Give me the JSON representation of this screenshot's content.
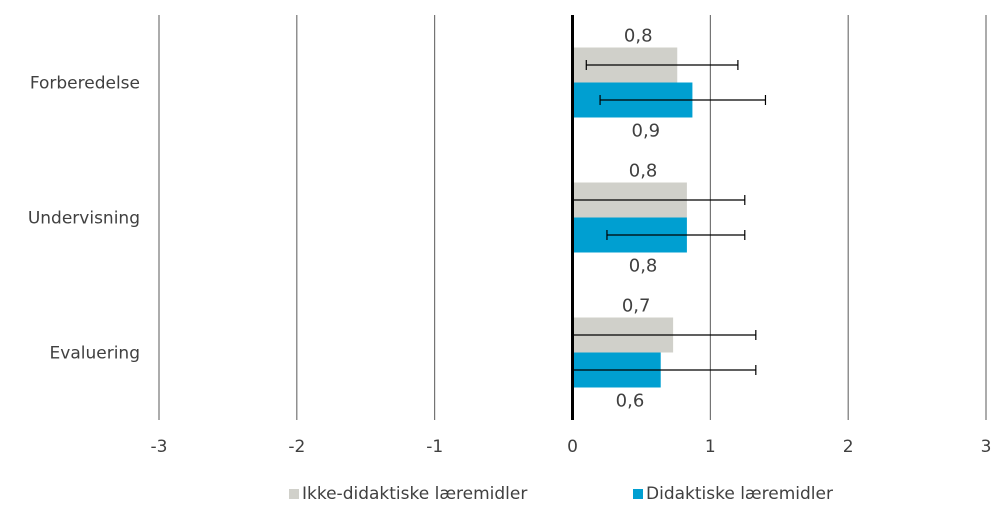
{
  "chart_data": {
    "type": "bar",
    "orientation": "horizontal",
    "title": "",
    "xlabel": "",
    "ylabel": "",
    "xlim": [
      -3,
      3
    ],
    "x_ticks": [
      "-3",
      "-2",
      "-1",
      "0",
      "1",
      "2",
      "3"
    ],
    "grid": "vertical",
    "legend_position": "bottom",
    "categories": [
      "Forberedelse",
      "Undervisning",
      "Evaluering"
    ],
    "series": [
      {
        "name": "Ikke-didaktiske læremidler",
        "color": "#d0d0ca",
        "values": [
          0.76,
          0.83,
          0.73
        ],
        "labels": [
          "0,8",
          "0,8",
          "0,7"
        ],
        "error_low": [
          0.1,
          0.0,
          0.0
        ],
        "error_high": [
          1.2,
          1.25,
          1.33
        ]
      },
      {
        "name": "Didaktiske læremidler",
        "color": "#009fd1",
        "values": [
          0.87,
          0.83,
          0.64
        ],
        "labels": [
          "0,9",
          "0,8",
          "0,6"
        ],
        "error_low": [
          0.2,
          0.25,
          0.0
        ],
        "error_high": [
          1.4,
          1.25,
          1.33
        ]
      }
    ]
  }
}
